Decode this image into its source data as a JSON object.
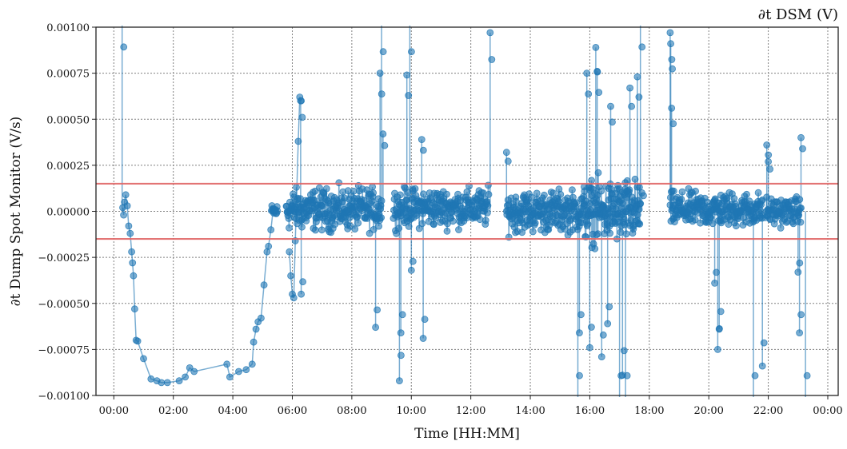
{
  "chart_data": {
    "type": "line",
    "title": "∂t DSM (V)",
    "xlabel": "Time [HH:MM]",
    "ylabel": "∂t Dump Spot Monitor (V/s)",
    "x_unit": "hours",
    "xlim": [
      -0.6,
      24.35
    ],
    "ylim": [
      -0.001,
      0.001
    ],
    "xticks": [
      0,
      2,
      4,
      6,
      8,
      10,
      12,
      14,
      16,
      18,
      20,
      22,
      24
    ],
    "xtick_labels": [
      "00:00",
      "02:00",
      "04:00",
      "06:00",
      "08:00",
      "10:00",
      "12:00",
      "14:00",
      "16:00",
      "18:00",
      "20:00",
      "22:00",
      "00:00"
    ],
    "yticks": [
      -0.001,
      -0.00075,
      -0.0005,
      -0.00025,
      0.0,
      0.00025,
      0.0005,
      0.00075,
      0.001
    ],
    "ytick_labels": [
      "−0.00100",
      "−0.00075",
      "−0.00050",
      "−0.00025",
      "0.00000",
      "0.00025",
      "0.00050",
      "0.00075",
      "0.00100"
    ],
    "grid": true,
    "threshold_lines": [
      0.00015,
      -0.00015
    ],
    "colors": {
      "series": "#1f77b4",
      "threshold": "#e06666",
      "grid": "#808080"
    },
    "series": [
      {
        "segments": [
          {
            "x": [
              0.3,
              0.33,
              0.36,
              0.4,
              0.45,
              0.5,
              0.55,
              0.6,
              0.63,
              0.66,
              0.7,
              0.75,
              0.8,
              1.0,
              1.25,
              1.45,
              1.6,
              1.8,
              2.2,
              2.4,
              2.55,
              2.7,
              3.8,
              3.9,
              4.2,
              4.45,
              4.65,
              4.7,
              4.78,
              4.85,
              4.95,
              5.05,
              5.15,
              5.2,
              5.28,
              5.35
            ],
            "y": [
              2e-05,
              -2e-05,
              5e-05,
              9e-05,
              3e-05,
              -8e-05,
              -0.00012,
              -0.00022,
              -0.00028,
              -0.00035,
              -0.00053,
              -0.0007,
              -0.000705,
              -0.0008,
              -0.00091,
              -0.00092,
              -0.00093,
              -0.00093,
              -0.00092,
              -0.0009,
              -0.00085,
              -0.00087,
              -0.00083,
              -0.0009,
              -0.00087,
              -0.00086,
              -0.00083,
              -0.00071,
              -0.00064,
              -0.0006,
              -0.00058,
              -0.0004,
              -0.00022,
              -0.00019,
              -0.0001,
              0.0
            ]
          },
          {
            "x": [
              5.9,
              5.95,
              6.0,
              6.05,
              6.1,
              6.2,
              6.25,
              6.3
            ],
            "y": [
              -0.00022,
              -0.00035,
              -0.00045,
              -0.00047,
              -0.00016,
              0.00038,
              0.00062,
              0.0006
            ]
          }
        ]
      }
    ],
    "dense_bands": [
      {
        "x_start": 5.3,
        "x_end": 5.5,
        "y_center": 0.0,
        "spread": 4e-05,
        "count": 14
      },
      {
        "x_start": 5.8,
        "x_end": 9.0,
        "y_center": 1e-05,
        "spread": 0.00012,
        "count": 240
      },
      {
        "x_start": 9.4,
        "x_end": 12.6,
        "y_center": 2e-05,
        "spread": 0.00011,
        "count": 230
      },
      {
        "x_start": 13.2,
        "x_end": 15.8,
        "y_center": 0.0,
        "spread": 0.00012,
        "count": 200
      },
      {
        "x_start": 15.8,
        "x_end": 17.7,
        "y_center": 0.0,
        "spread": 0.00018,
        "count": 170
      },
      {
        "x_start": 18.7,
        "x_end": 21.8,
        "y_center": 1e-05,
        "spread": 0.0001,
        "count": 230
      },
      {
        "x_start": 21.9,
        "x_end": 23.1,
        "y_center": 0.0,
        "spread": 8e-05,
        "count": 80
      }
    ],
    "spikes": [
      {
        "x": 0.28,
        "y": 0.00105
      },
      {
        "x": 6.28,
        "y": 0.0006
      },
      {
        "x": 6.3,
        "y": -0.00045
      },
      {
        "x": 8.8,
        "y": -0.00063
      },
      {
        "x": 8.95,
        "y": 0.00075
      },
      {
        "x": 9.0,
        "y": 0.00102
      },
      {
        "x": 9.05,
        "y": 0.00042
      },
      {
        "x": 9.6,
        "y": -0.00092
      },
      {
        "x": 9.65,
        "y": -0.00066
      },
      {
        "x": 9.85,
        "y": 0.00074
      },
      {
        "x": 9.95,
        "y": 0.00102
      },
      {
        "x": 10.0,
        "y": -0.00032
      },
      {
        "x": 10.35,
        "y": 0.00039
      },
      {
        "x": 10.4,
        "y": -0.00069
      },
      {
        "x": 12.65,
        "y": 0.00097
      },
      {
        "x": 13.2,
        "y": 0.00032
      },
      {
        "x": 15.6,
        "y": -0.00105
      },
      {
        "x": 15.65,
        "y": -0.00066
      },
      {
        "x": 15.9,
        "y": 0.00075
      },
      {
        "x": 16.0,
        "y": -0.00074
      },
      {
        "x": 16.2,
        "y": 0.00089
      },
      {
        "x": 16.25,
        "y": 0.00076
      },
      {
        "x": 16.4,
        "y": -0.00079
      },
      {
        "x": 16.6,
        "y": -0.00061
      },
      {
        "x": 16.7,
        "y": 0.00057
      },
      {
        "x": 17.0,
        "y": -0.00105
      },
      {
        "x": 17.1,
        "y": -0.00089
      },
      {
        "x": 17.2,
        "y": -0.00105
      },
      {
        "x": 17.35,
        "y": 0.00067
      },
      {
        "x": 17.6,
        "y": 0.00073
      },
      {
        "x": 17.7,
        "y": 0.00105
      },
      {
        "x": 17.75,
        "y": 0.0001
      },
      {
        "x": 18.7,
        "y": 0.00097
      },
      {
        "x": 18.72,
        "y": 0.00091
      },
      {
        "x": 18.75,
        "y": 0.00056
      },
      {
        "x": 20.2,
        "y": -0.00039
      },
      {
        "x": 20.3,
        "y": -0.00075
      },
      {
        "x": 20.35,
        "y": -0.00064
      },
      {
        "x": 21.5,
        "y": -0.00105
      },
      {
        "x": 21.8,
        "y": -0.00084
      },
      {
        "x": 21.95,
        "y": 0.00036
      },
      {
        "x": 22.0,
        "y": 0.00027
      },
      {
        "x": 23.0,
        "y": -0.00033
      },
      {
        "x": 23.05,
        "y": -0.00066
      },
      {
        "x": 23.1,
        "y": 0.0004
      },
      {
        "x": 23.25,
        "y": -0.00105
      }
    ]
  }
}
